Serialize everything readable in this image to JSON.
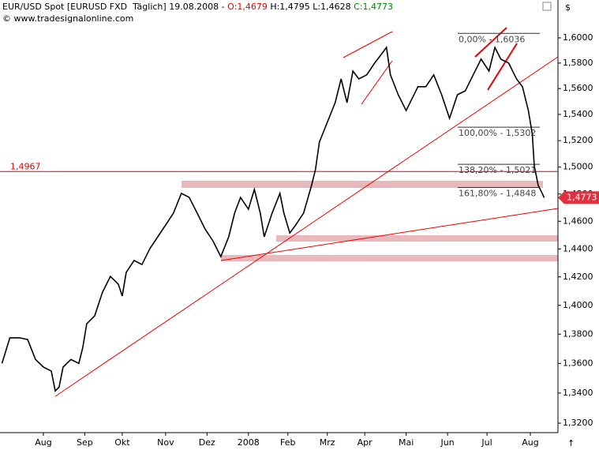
{
  "header": {
    "title": "EUR/USD Spot [EURUSD FXD  Täglich] 19.08.2008",
    "open": "O:1,4679",
    "high": "H:1,4795",
    "low": "L:1,4628",
    "close": "C:1,4773",
    "copyright": "© www.tradesignalonline.com"
  },
  "chart_data": {
    "type": "line",
    "color": "#000000",
    "log_scale": true,
    "x": [
      1,
      5,
      10,
      14,
      18,
      22,
      26,
      28,
      30,
      32,
      36,
      40,
      42,
      44,
      48,
      52,
      56,
      60,
      62,
      64,
      68,
      72,
      76,
      80,
      84,
      88,
      92,
      96,
      100,
      104,
      108,
      112,
      116,
      119,
      122,
      126,
      129,
      132,
      134,
      138,
      142,
      144,
      147,
      150,
      154,
      158,
      160,
      162,
      166,
      170,
      173,
      176,
      179,
      182,
      186,
      190,
      193,
      196,
      198,
      202,
      206,
      208,
      212,
      216,
      220,
      224,
      228,
      232,
      236,
      240,
      244,
      248,
      251,
      254,
      258,
      262,
      265,
      268,
      270,
      271,
      273,
      275,
      276
    ],
    "values": [
      1.36,
      1.3775,
      1.3775,
      1.3763,
      1.3627,
      1.3575,
      1.3548,
      1.3414,
      1.344,
      1.3575,
      1.3627,
      1.36,
      1.3709,
      1.3872,
      1.3926,
      1.4093,
      1.4204,
      1.4149,
      1.4065,
      1.4232,
      1.4317,
      1.4288,
      1.4402,
      1.4487,
      1.4573,
      1.466,
      1.4805,
      1.4775,
      1.466,
      1.4544,
      1.4458,
      1.4345,
      1.4487,
      1.466,
      1.4775,
      1.4688,
      1.4834,
      1.466,
      1.4487,
      1.466,
      1.4805,
      1.466,
      1.4515,
      1.4573,
      1.466,
      1.4863,
      1.4981,
      1.5189,
      1.5339,
      1.5491,
      1.5675,
      1.5491,
      1.5737,
      1.5675,
      1.5707,
      1.58,
      1.5861,
      1.5924,
      1.5707,
      1.5552,
      1.543,
      1.5491,
      1.5615,
      1.5615,
      1.5707,
      1.5552,
      1.537,
      1.5552,
      1.5583,
      1.5707,
      1.5831,
      1.5737,
      1.5924,
      1.5831,
      1.58,
      1.5675,
      1.5615,
      1.543,
      1.5248,
      1.501,
      1.4863,
      1.4805,
      1.4773
    ],
    "xlim": [
      0,
      283
    ],
    "xticks": [
      {
        "value": 22,
        "label": "Aug"
      },
      {
        "value": 43,
        "label": "Sep"
      },
      {
        "value": 62,
        "label": "Okt"
      },
      {
        "value": 84,
        "label": "Nov"
      },
      {
        "value": 105,
        "label": "Dez"
      },
      {
        "value": 126,
        "label": "2008"
      },
      {
        "value": 146,
        "label": "Feb"
      },
      {
        "value": 166,
        "label": "Mrz"
      },
      {
        "value": 185,
        "label": "Apr"
      },
      {
        "value": 206,
        "label": "Mai"
      },
      {
        "value": 227,
        "label": "Jun"
      },
      {
        "value": 247,
        "label": "Jul"
      },
      {
        "value": 269,
        "label": "Aug"
      }
    ],
    "ylim": [
      1.3138,
      1.619
    ],
    "yticks": [
      {
        "value": 1.32,
        "label": "1,3200"
      },
      {
        "value": 1.34,
        "label": "1,3400"
      },
      {
        "value": 1.36,
        "label": "1,3600"
      },
      {
        "value": 1.38,
        "label": "1,3800"
      },
      {
        "value": 1.4,
        "label": "1,4000"
      },
      {
        "value": 1.42,
        "label": "1,4200"
      },
      {
        "value": 1.44,
        "label": "1,4400"
      },
      {
        "value": 1.46,
        "label": "1,4600"
      },
      {
        "value": 1.48,
        "label": "1,4800"
      },
      {
        "value": 1.5,
        "label": "1,5000"
      },
      {
        "value": 1.52,
        "label": "1,5200"
      },
      {
        "value": 1.54,
        "label": "1,5400"
      },
      {
        "value": 1.56,
        "label": "1,5600"
      },
      {
        "value": 1.58,
        "label": "1,5800"
      },
      {
        "value": 1.6,
        "label": "1,6000"
      }
    ],
    "level": {
      "value": 1.4967,
      "label": "1,4967",
      "color": "#e00000"
    },
    "fib_levels": [
      {
        "value": 1.6036,
        "label": "0,00% - 1,6036"
      },
      {
        "value": 1.5302,
        "label": "100,00% - 1,5302"
      },
      {
        "value": 1.5021,
        "label": "138,20% - 1,5021"
      },
      {
        "value": 1.4848,
        "label": "161,80% - 1,4848"
      }
    ],
    "price_tag": {
      "value": 1.4773,
      "label": "1,4773",
      "color": "#e03040"
    }
  }
}
